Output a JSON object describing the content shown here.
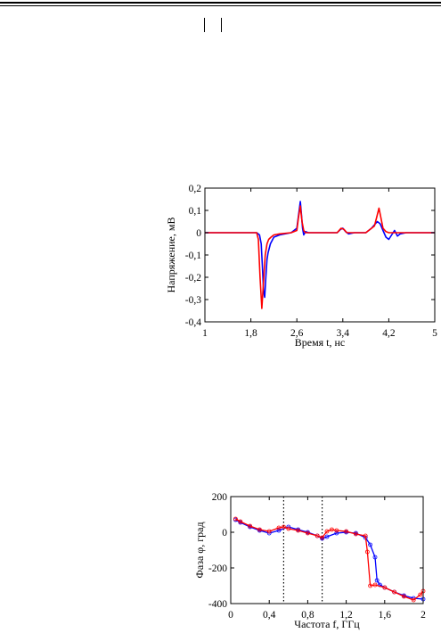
{
  "chart_data": [
    {
      "type": "line",
      "title": "",
      "xlabel": "Время t, нс",
      "ylabel": "Напряжение, мВ",
      "xlim": [
        1,
        5
      ],
      "ylim": [
        -0.4,
        0.2
      ],
      "xticks": [
        1,
        1.8,
        2.6,
        3.4,
        4.2,
        5
      ],
      "xtick_labels": [
        "1",
        "1,8",
        "2,6",
        "3,4",
        "4,2",
        "5"
      ],
      "yticks": [
        0.2,
        0.1,
        0,
        -0.1,
        -0.2,
        -0.3,
        -0.4
      ],
      "ytick_labels": [
        "0,2",
        "0,1",
        "0",
        "-0,1",
        "-0,2",
        "-0,3",
        "-0,4"
      ],
      "grid": false,
      "legend": "none",
      "series": [
        {
          "color": "#0000ff",
          "x": [
            1,
            1.5,
            1.9,
            1.95,
            1.98,
            2.0,
            2.02,
            2.04,
            2.06,
            2.08,
            2.1,
            2.14,
            2.2,
            2.3,
            2.5,
            2.6,
            2.64,
            2.66,
            2.68,
            2.7,
            2.72,
            2.75,
            2.8,
            3.0,
            3.3,
            3.36,
            3.4,
            3.45,
            3.5,
            3.6,
            3.8,
            3.9,
            4.0,
            4.05,
            4.1,
            4.15,
            4.2,
            4.25,
            4.3,
            4.35,
            4.4,
            4.5,
            4.7,
            5
          ],
          "y": [
            0,
            0,
            0,
            -0.01,
            -0.05,
            -0.15,
            -0.26,
            -0.29,
            -0.2,
            -0.12,
            -0.09,
            -0.05,
            -0.02,
            -0.01,
            0,
            0.02,
            0.1,
            0.14,
            0.08,
            0.02,
            -0.01,
            0.005,
            0,
            0,
            0,
            0.015,
            0.02,
            0.005,
            -0.005,
            0,
            0,
            0.02,
            0.05,
            0.04,
            0.01,
            -0.02,
            -0.03,
            -0.01,
            0.01,
            -0.015,
            -0.005,
            0,
            0,
            0
          ]
        },
        {
          "color": "#ff0000",
          "x": [
            1,
            1.5,
            1.9,
            1.93,
            1.96,
            1.99,
            2.02,
            2.05,
            2.08,
            2.11,
            2.15,
            2.2,
            2.3,
            2.5,
            2.6,
            2.63,
            2.66,
            2.69,
            2.72,
            2.75,
            2.8,
            3.0,
            3.3,
            3.37,
            3.42,
            3.47,
            3.55,
            3.8,
            3.95,
            4.0,
            4.03,
            4.06,
            4.1,
            4.15,
            4.2,
            4.3,
            4.5,
            5
          ],
          "y": [
            0,
            0,
            0,
            -0.03,
            -0.2,
            -0.34,
            -0.22,
            -0.1,
            -0.05,
            -0.03,
            -0.02,
            -0.01,
            -0.005,
            0,
            0.01,
            0.07,
            0.12,
            0.05,
            0.01,
            0,
            0,
            0,
            0,
            0.02,
            0.015,
            0,
            0,
            0,
            0.03,
            0.08,
            0.11,
            0.07,
            0.02,
            0.005,
            0,
            0,
            0,
            0
          ]
        }
      ],
      "annotations": []
    },
    {
      "type": "line",
      "title": "",
      "xlabel": "Частота f, ГГц",
      "ylabel": "Фаза φ, град",
      "xlim": [
        0,
        2
      ],
      "ylim": [
        -400,
        200
      ],
      "xticks": [
        0,
        0.4,
        0.8,
        1.2,
        1.6,
        2
      ],
      "xtick_labels": [
        "0",
        "0,4",
        "0,8",
        "1,2",
        "1,6",
        "2"
      ],
      "yticks": [
        200,
        0,
        -200,
        -400
      ],
      "ytick_labels": [
        "200",
        "0",
        "-200",
        "-400"
      ],
      "grid": false,
      "legend": "none",
      "vlines": [
        0.55,
        0.95
      ],
      "series": [
        {
          "color": "#0000ff",
          "marker": "circle",
          "x": [
            0.05,
            0.1,
            0.2,
            0.3,
            0.4,
            0.5,
            0.6,
            0.7,
            0.8,
            0.9,
            0.95,
            1.0,
            1.1,
            1.2,
            1.3,
            1.4,
            1.45,
            1.5,
            1.52,
            1.55,
            1.6,
            1.7,
            1.8,
            1.9,
            2.0
          ],
          "y": [
            70,
            55,
            30,
            10,
            -5,
            10,
            30,
            15,
            0,
            -20,
            -35,
            -25,
            -5,
            0,
            -5,
            -30,
            -70,
            -140,
            -270,
            -295,
            -310,
            -335,
            -355,
            -370,
            -375
          ]
        },
        {
          "color": "#ff0000",
          "marker": "circle",
          "x": [
            0.05,
            0.1,
            0.2,
            0.3,
            0.4,
            0.5,
            0.55,
            0.6,
            0.7,
            0.8,
            0.9,
            0.95,
            1.0,
            1.05,
            1.1,
            1.2,
            1.3,
            1.4,
            1.42,
            1.45,
            1.5,
            1.6,
            1.7,
            1.8,
            1.9,
            1.97,
            2.0
          ],
          "y": [
            75,
            60,
            35,
            15,
            5,
            25,
            30,
            20,
            10,
            -5,
            -20,
            -30,
            5,
            15,
            10,
            5,
            -10,
            -20,
            -110,
            -300,
            -295,
            -310,
            -335,
            -360,
            -380,
            -350,
            -330
          ]
        }
      ],
      "annotations": []
    }
  ]
}
